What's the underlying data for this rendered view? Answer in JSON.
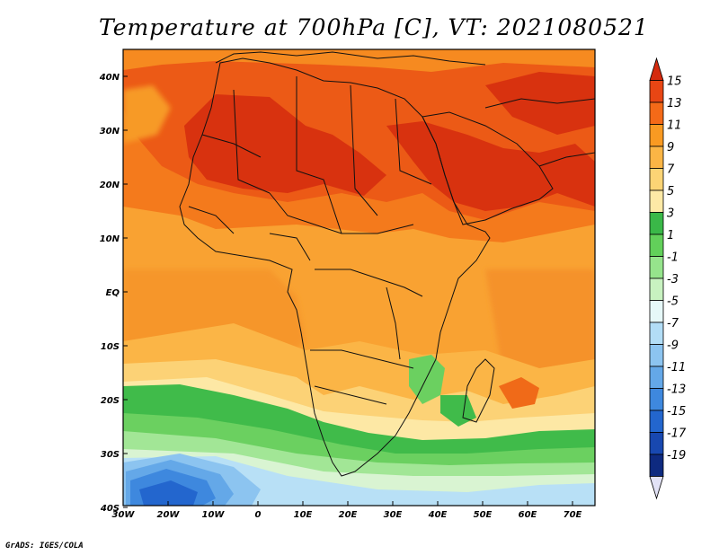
{
  "title": "Temperature at 700hPa [C], VT: 2021080521",
  "credit": "GrADS: IGES/COLA",
  "map": {
    "variable": "Temperature at 700hPa",
    "units": "C",
    "valid_time": "2021080521",
    "region": "Africa and surrounding oceans",
    "lon_range": [
      "30W",
      "75E"
    ],
    "lat_range": [
      "40S",
      "45N"
    ],
    "lat_labels": [
      "40N",
      "30N",
      "20N",
      "10N",
      "EQ",
      "10S",
      "20S",
      "30S",
      "40S"
    ],
    "lon_labels": [
      "30W",
      "20W",
      "10W",
      "0",
      "10E",
      "20E",
      "30E",
      "40E",
      "50E",
      "60E",
      "70E"
    ]
  },
  "colorbar": {
    "labels": [
      "15",
      "13",
      "11",
      "9",
      "7",
      "5",
      "3",
      "1",
      "-1",
      "-3",
      "-5",
      "-7",
      "-9",
      "-11",
      "-13",
      "-15",
      "-17",
      "-19"
    ],
    "colors": [
      "#d42a0e",
      "#e84614",
      "#f46a18",
      "#f99a22",
      "#fbb545",
      "#fcd475",
      "#fde9a6",
      "#3ab848",
      "#62d05a",
      "#96e48c",
      "#c8f2c0",
      "#e6f8f8",
      "#b2ddf6",
      "#8cc4f0",
      "#64a8e8",
      "#3e88de",
      "#2366ce",
      "#1848b0",
      "#0e2a80",
      "#e2e2f6"
    ]
  },
  "colors": {
    "background": "#ffffff",
    "border": "#000000"
  }
}
